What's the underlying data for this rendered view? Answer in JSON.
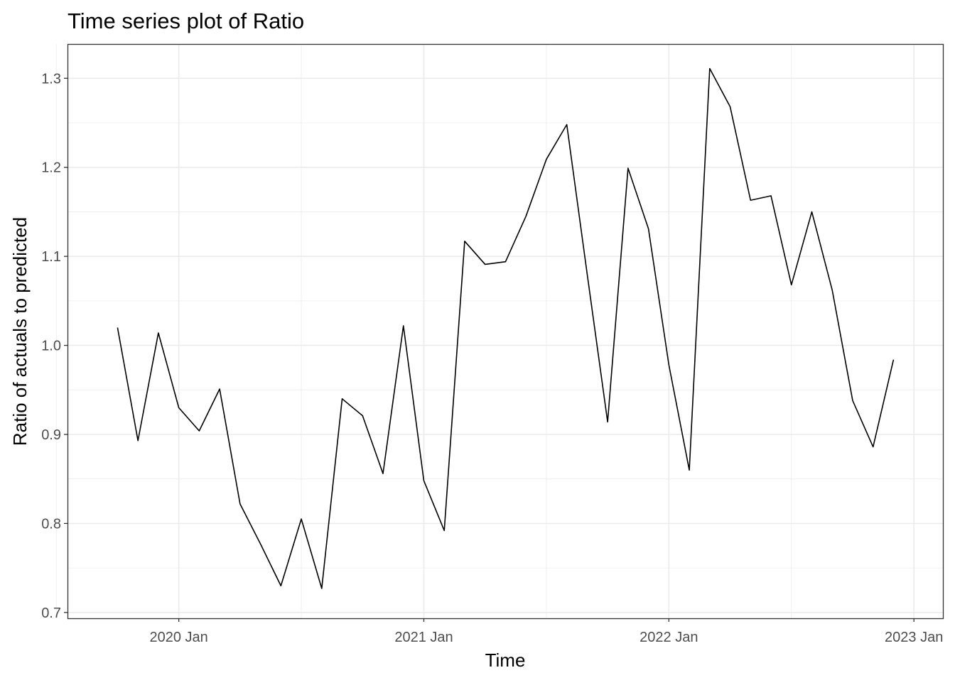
{
  "chart_data": {
    "type": "line",
    "title": "Time series plot of Ratio",
    "xlabel": "Time",
    "ylabel": "Ratio of actuals to predicted",
    "x_tick_labels": [
      "2020 Jan",
      "2021 Jan",
      "2022 Jan",
      "2023 Jan"
    ],
    "y_tick_labels": [
      "0.7",
      "0.8",
      "0.9",
      "1.0",
      "1.1",
      "1.2",
      "1.3"
    ],
    "y_ticks": [
      0.7,
      0.8,
      0.9,
      1.0,
      1.1,
      1.2,
      1.3
    ],
    "x_ticks": [
      "2020-01",
      "2021-01",
      "2022-01",
      "2023-01"
    ],
    "xlim": [
      "2019-08",
      "2023-02"
    ],
    "ylim": [
      0.7,
      1.34
    ],
    "grid": true,
    "colors": {
      "line": "#000000",
      "grid": "#ebebeb",
      "border": "#333333"
    },
    "series": [
      {
        "x": [
          "2019-10",
          "2019-11",
          "2019-12",
          "2020-01",
          "2020-02",
          "2020-03",
          "2020-04",
          "2020-05",
          "2020-06",
          "2020-07",
          "2020-08",
          "2020-09",
          "2020-10",
          "2020-11",
          "2020-12",
          "2021-01",
          "2021-02",
          "2021-03",
          "2021-04",
          "2021-05",
          "2021-06",
          "2021-07",
          "2021-08",
          "2021-09",
          "2021-10",
          "2021-11",
          "2021-12",
          "2022-01",
          "2022-02",
          "2022-03",
          "2022-04",
          "2022-05",
          "2022-06",
          "2022-07",
          "2022-08",
          "2022-09",
          "2022-10",
          "2022-11",
          "2022-12"
        ],
        "values": [
          1.02,
          0.893,
          1.014,
          0.93,
          0.904,
          0.951,
          0.822,
          0.777,
          0.73,
          0.805,
          0.727,
          0.94,
          0.921,
          0.856,
          1.022,
          0.848,
          0.792,
          1.117,
          1.091,
          1.094,
          1.145,
          1.209,
          1.248,
          1.08,
          0.914,
          1.199,
          1.131,
          0.978,
          0.86,
          1.311,
          1.268,
          1.163,
          1.168,
          1.068,
          1.15,
          1.062,
          0.938,
          0.886,
          0.984
        ]
      }
    ]
  }
}
